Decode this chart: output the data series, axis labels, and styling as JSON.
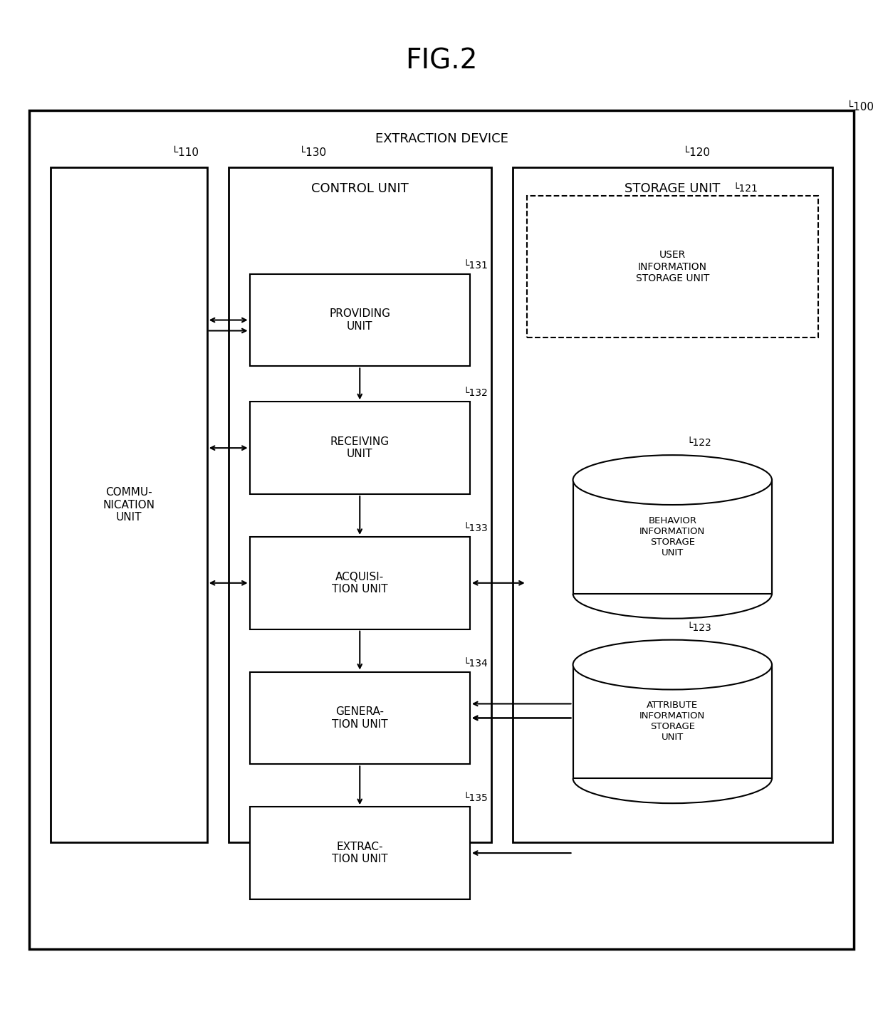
{
  "title": "FIG.2",
  "bg_color": "#ffffff",
  "line_color": "#000000",
  "fig_width": 12.4,
  "fig_height": 14.34,
  "labels": {
    "extraction_device": "EXTRACTION DEVICE",
    "ref_100": "100",
    "ref_110": "110",
    "ref_120": "120",
    "ref_130": "130",
    "ref_131": "131",
    "ref_132": "132",
    "ref_133": "133",
    "ref_134": "134",
    "ref_135": "135",
    "ref_121": "121",
    "ref_122": "122",
    "ref_123": "123",
    "comm_unit": "COMMU-\nNICATION\nUNIT",
    "storage_unit": "STORAGE UNIT",
    "control_unit": "CONTROL UNIT",
    "providing_unit": "PROVIDING\nUNIT",
    "receiving_unit": "RECEIVING\nUNIT",
    "acquisition_unit": "ACQUISI-\nTION UNIT",
    "generation_unit": "GENERA-\nTION UNIT",
    "extraction_unit": "EXTRAC-\nTION UNIT",
    "user_info_storage": "USER\nINFORMATION\nSTORAGE UNIT",
    "behavior_info_storage": "BEHAVIOR\nINFORMATION\nSTORAGE\nUNIT",
    "attribute_info_storage": "ATTRIBUTE\nINFORMATION\nSTORAGE\nUNIT"
  }
}
